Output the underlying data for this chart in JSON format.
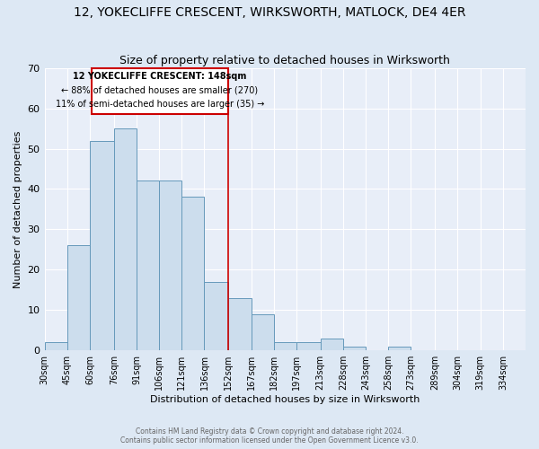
{
  "title": "12, YOKECLIFFE CRESCENT, WIRKSWORTH, MATLOCK, DE4 4ER",
  "subtitle": "Size of property relative to detached houses in Wirksworth",
  "xlabel": "Distribution of detached houses by size in Wirksworth",
  "ylabel": "Number of detached properties",
  "bar_color": "#ccdded",
  "bar_edge_color": "#6699bb",
  "background_color": "#e8eef8",
  "grid_color": "#ffffff",
  "bin_labels": [
    "30sqm",
    "45sqm",
    "60sqm",
    "76sqm",
    "91sqm",
    "106sqm",
    "121sqm",
    "136sqm",
    "152sqm",
    "167sqm",
    "182sqm",
    "197sqm",
    "213sqm",
    "228sqm",
    "243sqm",
    "258sqm",
    "273sqm",
    "289sqm",
    "304sqm",
    "319sqm",
    "334sqm"
  ],
  "bin_edges": [
    30,
    45,
    60,
    76,
    91,
    106,
    121,
    136,
    152,
    167,
    182,
    197,
    213,
    228,
    243,
    258,
    273,
    289,
    304,
    319,
    334,
    349
  ],
  "counts": [
    2,
    26,
    52,
    55,
    42,
    42,
    38,
    17,
    13,
    9,
    2,
    2,
    3,
    1,
    0,
    1,
    0,
    0,
    0,
    0,
    0
  ],
  "vline_x": 152,
  "annotation_title": "12 YOKECLIFFE CRESCENT: 148sqm",
  "annotation_line1": "← 88% of detached houses are smaller (270)",
  "annotation_line2": "11% of semi-detached houses are larger (35) →",
  "annotation_box_color": "#cc0000",
  "ylim": [
    0,
    70
  ],
  "yticks": [
    0,
    10,
    20,
    30,
    40,
    50,
    60,
    70
  ],
  "footer1": "Contains HM Land Registry data © Crown copyright and database right 2024.",
  "footer2": "Contains public sector information licensed under the Open Government Licence v3.0."
}
